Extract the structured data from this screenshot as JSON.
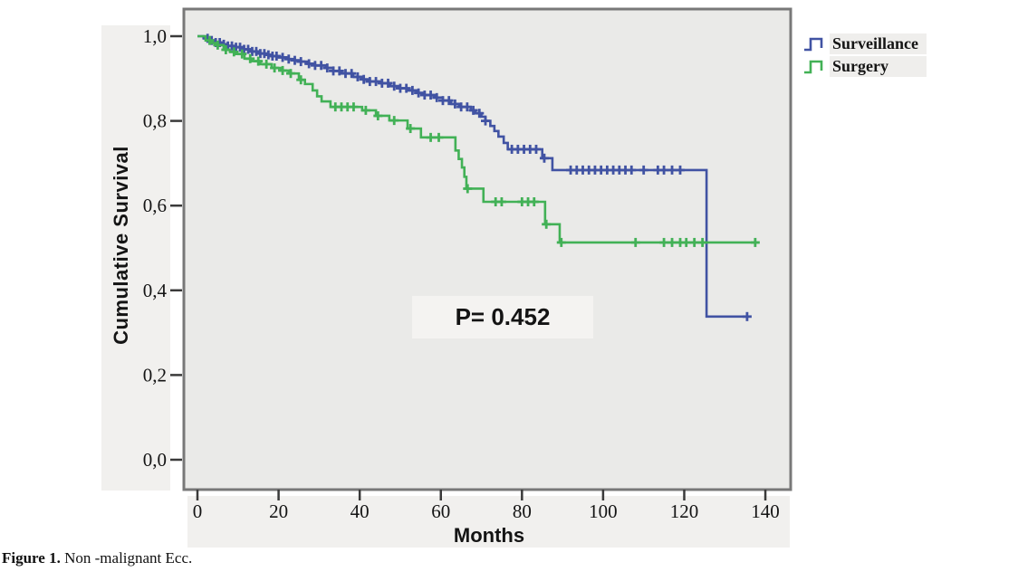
{
  "figure": {
    "caption_bold": "Figure 1.",
    "caption_rest": " Non -malignant Ecc."
  },
  "chart_data": {
    "type": "line",
    "subtype": "kaplan-meier-step",
    "title": "",
    "xlabel": "Months",
    "ylabel": "Cumulative Survival",
    "annotation": "P= 0.452",
    "x_ticks": [
      0,
      20,
      40,
      60,
      80,
      100,
      120,
      140
    ],
    "y_ticks": [
      "1,0",
      "0,8",
      "0,6",
      "0,4",
      "0,2",
      "0,0"
    ],
    "y_tick_values": [
      1.0,
      0.8,
      0.6,
      0.4,
      0.2,
      0.0
    ],
    "xlim": [
      -4,
      146
    ],
    "ylim": [
      0,
      1.07
    ],
    "grid": false,
    "legend": {
      "position": "top-right",
      "entries": [
        {
          "label": "Surveillance",
          "color": "#4153a3"
        },
        {
          "label": "Surgery",
          "color": "#42b156"
        }
      ]
    },
    "series": [
      {
        "name": "Surveillance",
        "color": "#4153a3",
        "end": 135.5,
        "steps": [
          [
            0,
            1.0
          ],
          [
            1.5,
            0.995
          ],
          [
            3,
            0.99
          ],
          [
            4.5,
            0.985
          ],
          [
            6,
            0.981
          ],
          [
            7.5,
            0.977
          ],
          [
            9.4,
            0.974
          ],
          [
            11,
            0.969
          ],
          [
            13,
            0.964
          ],
          [
            15,
            0.959
          ],
          [
            17,
            0.956
          ],
          [
            18.3,
            0.953
          ],
          [
            20,
            0.95
          ],
          [
            22,
            0.946
          ],
          [
            24,
            0.943
          ],
          [
            25,
            0.94
          ],
          [
            27,
            0.935
          ],
          [
            29,
            0.931
          ],
          [
            31.7,
            0.925
          ],
          [
            33.5,
            0.918
          ],
          [
            35.5,
            0.912
          ],
          [
            38.4,
            0.904
          ],
          [
            40.5,
            0.898
          ],
          [
            42.5,
            0.893
          ],
          [
            45.1,
            0.889
          ],
          [
            47.5,
            0.882
          ],
          [
            49.5,
            0.877
          ],
          [
            51.8,
            0.872
          ],
          [
            54,
            0.866
          ],
          [
            56,
            0.861
          ],
          [
            58.5,
            0.855
          ],
          [
            60.5,
            0.848
          ],
          [
            62.5,
            0.84
          ],
          [
            64.5,
            0.833
          ],
          [
            67.4,
            0.825
          ],
          [
            68.5,
            0.818
          ],
          [
            70,
            0.81
          ],
          [
            71,
            0.8
          ],
          [
            72.2,
            0.788
          ],
          [
            73.2,
            0.776
          ],
          [
            74.2,
            0.763
          ],
          [
            75.5,
            0.748
          ],
          [
            76.5,
            0.733
          ],
          [
            85,
            0.712
          ],
          [
            87.5,
            0.684
          ],
          [
            125.5,
            0.338
          ]
        ],
        "censors": [
          2.5,
          3.5,
          4.5,
          5.5,
          6.5,
          7.5,
          8.5,
          9.5,
          10.5,
          11.5,
          12.5,
          13.5,
          14.5,
          15.5,
          16.5,
          17.5,
          18.5,
          19.5,
          21,
          22.5,
          24,
          25.5,
          27.5,
          29,
          30.5,
          32,
          33.5,
          35,
          36.5,
          38,
          39.5,
          41,
          42.5,
          44,
          45.5,
          47,
          48.5,
          50,
          51.5,
          53,
          54.5,
          56,
          57.5,
          59,
          60.5,
          62,
          63.5,
          65,
          66.5,
          68,
          69.5,
          71,
          77.5,
          79,
          80.5,
          82,
          83.5,
          85.5,
          92,
          93.5,
          95,
          96.5,
          98,
          99.5,
          101,
          102.5,
          104,
          105.5,
          107,
          110,
          113.5,
          115,
          117,
          119,
          135.5
        ]
      },
      {
        "name": "Surgery",
        "color": "#42b156",
        "end": 138.5,
        "steps": [
          [
            0,
            1.0
          ],
          [
            2,
            0.99
          ],
          [
            3.5,
            0.984
          ],
          [
            4.9,
            0.979
          ],
          [
            6.5,
            0.968
          ],
          [
            8,
            0.963
          ],
          [
            9.5,
            0.958
          ],
          [
            11.6,
            0.947
          ],
          [
            13.5,
            0.941
          ],
          [
            15.5,
            0.934
          ],
          [
            18.3,
            0.925
          ],
          [
            20.5,
            0.919
          ],
          [
            22.5,
            0.912
          ],
          [
            25,
            0.897
          ],
          [
            26.5,
            0.887
          ],
          [
            28.4,
            0.872
          ],
          [
            29.5,
            0.858
          ],
          [
            30.6,
            0.846
          ],
          [
            32.8,
            0.833
          ],
          [
            40.6,
            0.825
          ],
          [
            44,
            0.812
          ],
          [
            47.3,
            0.801
          ],
          [
            51.8,
            0.782
          ],
          [
            55.1,
            0.761
          ],
          [
            63.6,
            0.73
          ],
          [
            64.4,
            0.71
          ],
          [
            65.2,
            0.69
          ],
          [
            65.8,
            0.668
          ],
          [
            66.3,
            0.64
          ],
          [
            70.5,
            0.609
          ],
          [
            85.7,
            0.556
          ],
          [
            89.3,
            0.513
          ]
        ],
        "censors": [
          3,
          5,
          7,
          9,
          11,
          13,
          15,
          17,
          19,
          21,
          23,
          25.5,
          34,
          35.5,
          37,
          38.5,
          41.5,
          44.5,
          48.5,
          52.5,
          57.5,
          59.5,
          66.6,
          73.5,
          75,
          80,
          81.5,
          83,
          86,
          89.7,
          108,
          115,
          117,
          119,
          120.5,
          122.5,
          124.5,
          137.5
        ]
      }
    ]
  },
  "style": {
    "plot_bg": "#eaeae8",
    "frame_color": "#787878",
    "tick_color": "#3a3a3a",
    "text_color": "#141414",
    "strip_bg": "#f1f0ee",
    "pbox_bg": "#f4f3f1"
  }
}
